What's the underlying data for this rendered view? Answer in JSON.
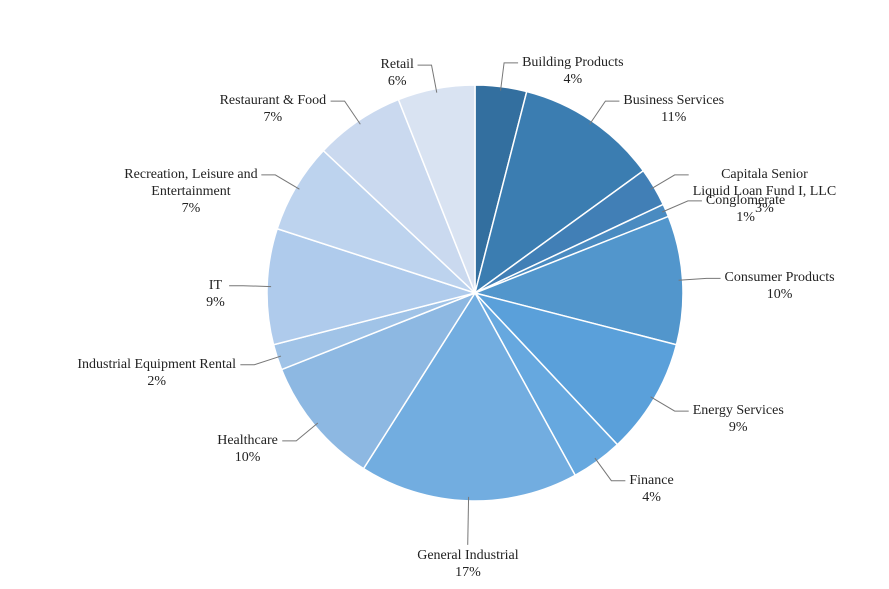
{
  "chart_data": {
    "type": "pie",
    "categories": [
      "Building Products",
      "Business Services",
      "Capitala Senior\nLiquid Loan Fund I, LLC",
      "Conglomerate",
      "Consumer Products",
      "Energy Services",
      "Finance",
      "General Industrial",
      "Healthcare",
      "Industrial Equipment Rental",
      "IT",
      "Recreation, Leisure and\nEntertainment",
      "Restaurant & Food",
      "Retail"
    ],
    "values": [
      4,
      11,
      3,
      1,
      10,
      9,
      4,
      17,
      10,
      2,
      9,
      7,
      7,
      6
    ],
    "value_labels": [
      "4%",
      "11%",
      "3%",
      "1%",
      "10%",
      "9%",
      "4%",
      "17%",
      "10%",
      "2%",
      "9%",
      "7%",
      "7%",
      "6%"
    ],
    "colors": [
      "#336f9f",
      "#3b7db1",
      "#417fb6",
      "#4a8bc1",
      "#5296cc",
      "#5aa0da",
      "#66a8df",
      "#72ade0",
      "#8db8e2",
      "#a0c3e7",
      "#afcbec",
      "#bdd3ee",
      "#cad9ef",
      "#d9e3f2"
    ]
  }
}
